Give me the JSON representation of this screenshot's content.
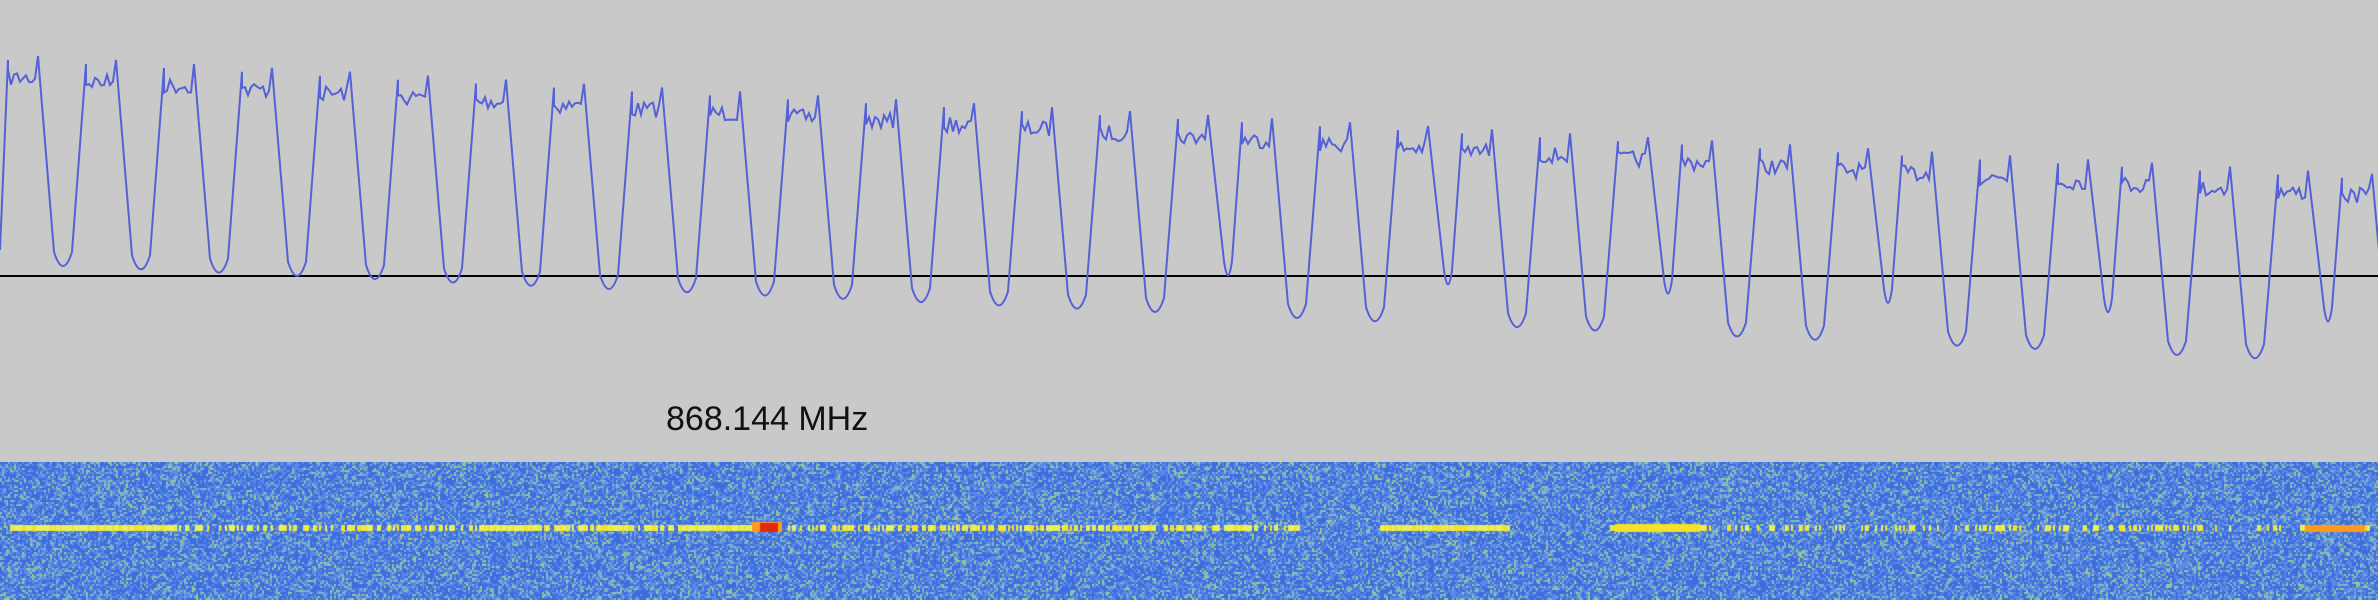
{
  "waveform": {
    "trace_color": "#5561d6",
    "baseline_color": "#000000",
    "background_color": "#c9c9c9"
  },
  "frequency_marker": {
    "label": "868.144 MHz"
  },
  "spectrogram": {
    "noise_colors": [
      "#3d6ce0",
      "#5a8ae6",
      "#7fb3c6",
      "#9cc98c"
    ],
    "signal_colors": [
      "#e8f05a",
      "#f5e02a",
      "#ff9a1e",
      "#e02a10"
    ]
  }
}
